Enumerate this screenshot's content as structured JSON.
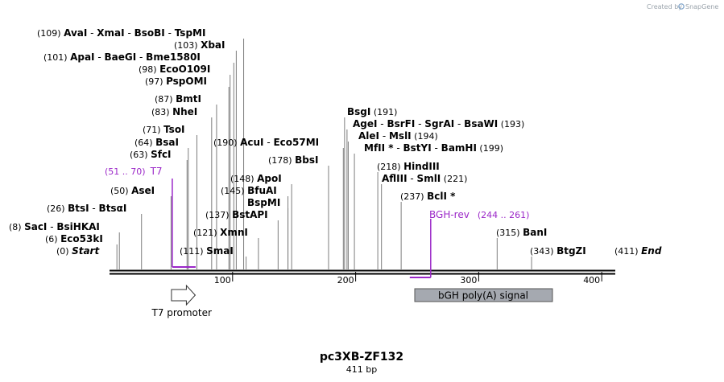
{
  "credit": {
    "prefix": "Created by",
    "brand": "SnapGene"
  },
  "map": {
    "name": "pc3XB-ZF132",
    "size_label": "411 bp",
    "length": 411,
    "ticks": [
      100,
      200,
      300,
      400
    ],
    "ends": [
      {
        "pos": 0,
        "label": "Start"
      },
      {
        "pos": 411,
        "label": "End"
      }
    ],
    "sites": [
      {
        "pos": 0,
        "enzymes": [
          "Start"
        ],
        "italic": true,
        "end": true
      },
      {
        "pos": 6,
        "enzymes": [
          "Eco53kI"
        ]
      },
      {
        "pos": 8,
        "enzymes": [
          "SacI",
          "BsiHKAI"
        ]
      },
      {
        "pos": 26,
        "enzymes": [
          "BtsI",
          "BtsαI"
        ]
      },
      {
        "pos": 50,
        "enzymes": [
          "AseI"
        ]
      },
      {
        "pos": 63,
        "enzymes": [
          "SfcI"
        ]
      },
      {
        "pos": 64,
        "enzymes": [
          "BsaI"
        ]
      },
      {
        "pos": 71,
        "enzymes": [
          "TsoI"
        ]
      },
      {
        "pos": 83,
        "enzymes": [
          "NheI"
        ]
      },
      {
        "pos": 87,
        "enzymes": [
          "BmtI"
        ]
      },
      {
        "pos": 97,
        "enzymes": [
          "PspOMI"
        ]
      },
      {
        "pos": 98,
        "enzymes": [
          "EcoO109I"
        ]
      },
      {
        "pos": 101,
        "enzymes": [
          "ApaI",
          "BaeGI",
          "Bme1580I"
        ]
      },
      {
        "pos": 103,
        "enzymes": [
          "XbaI"
        ]
      },
      {
        "pos": 109,
        "enzymes": [
          "AvaI",
          "XmaI",
          "BsoBI",
          "TspMI"
        ]
      },
      {
        "pos": 111,
        "enzymes": [
          "SmaI"
        ]
      },
      {
        "pos": 121,
        "enzymes": [
          "XmnI"
        ]
      },
      {
        "pos": 137,
        "enzymes": [
          "BstAPI"
        ]
      },
      {
        "pos": 145,
        "enzymes": [
          "BfuAI"
        ]
      },
      {
        "pos": 145,
        "enzymes": [
          "BspMI"
        ],
        "nopos": true
      },
      {
        "pos": 148,
        "enzymes": [
          "ApoI"
        ]
      },
      {
        "pos": 178,
        "enzymes": [
          "BbsI"
        ]
      },
      {
        "pos": 190,
        "enzymes": [
          "AcuI",
          "Eco57MI"
        ]
      },
      {
        "pos": 191,
        "enzymes": [
          "BsgI"
        ]
      },
      {
        "pos": 193,
        "enzymes": [
          "AgeI",
          "BsrFI",
          "SgrAI",
          "BsaWI"
        ]
      },
      {
        "pos": 194,
        "enzymes": [
          "AleI",
          "MslI"
        ]
      },
      {
        "pos": 199,
        "enzymes": [
          "MfII *",
          "BstYI",
          "BamHI"
        ]
      },
      {
        "pos": 218,
        "enzymes": [
          "HindIII"
        ]
      },
      {
        "pos": 221,
        "enzymes": [
          "AflIII",
          "SmlI"
        ]
      },
      {
        "pos": 237,
        "enzymes": [
          "BclI *"
        ]
      },
      {
        "pos": 315,
        "enzymes": [
          "BanI"
        ]
      },
      {
        "pos": 343,
        "enzymes": [
          "BtgZI"
        ]
      },
      {
        "pos": 411,
        "enzymes": [
          "End"
        ],
        "italic": true,
        "end": true
      }
    ],
    "primers": [
      {
        "name": "T7",
        "range_label": "(51 .. 70)",
        "start": 51,
        "end": 70,
        "strand": "forward"
      },
      {
        "name": "BGH-rev",
        "range_label": "(244 .. 261)",
        "start": 244,
        "end": 261,
        "strand": "reverse"
      }
    ],
    "features": [
      {
        "name": "T7 promoter",
        "start": 51,
        "end": 69,
        "type": "promoter",
        "color": "#ffffff"
      },
      {
        "name": "bGH poly(A) signal",
        "start": 248,
        "end": 362,
        "type": "polyA",
        "color": "#a5a9b0"
      }
    ],
    "colors": {
      "primer": "#9b27c8",
      "backbone": "#000000",
      "leader": "#7d7d7d"
    }
  }
}
